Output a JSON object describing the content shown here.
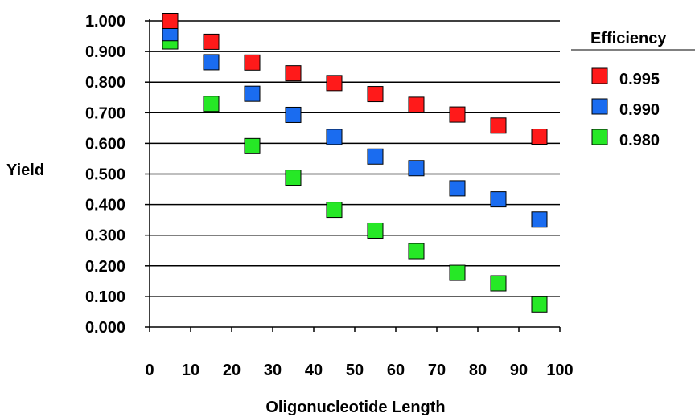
{
  "chart_data": {
    "type": "scatter",
    "title": "",
    "xlabel": "Oligonucleotide Length",
    "ylabel": "Yield",
    "xlim": [
      0,
      100
    ],
    "ylim": [
      0,
      1
    ],
    "x_ticks": [
      "0",
      "10",
      "20",
      "30",
      "40",
      "50",
      "60",
      "70",
      "80",
      "90",
      "100"
    ],
    "y_ticks": [
      "0.000",
      "0.100",
      "0.200",
      "0.300",
      "0.400",
      "0.500",
      "0.600",
      "0.700",
      "0.800",
      "0.900",
      "1.000"
    ],
    "grid": "horizontal",
    "legend": {
      "title": "Efficiency",
      "position": "right"
    },
    "x": [
      5,
      15,
      25,
      35,
      45,
      55,
      65,
      75,
      85,
      95
    ],
    "series": [
      {
        "name": "0.995",
        "color": "#ff1a1a",
        "values": [
          1.0,
          0.932,
          0.864,
          0.829,
          0.797,
          0.761,
          0.726,
          0.694,
          0.658,
          0.622
        ]
      },
      {
        "name": "0.990",
        "color": "#1a6cf0",
        "values": [
          0.96,
          0.865,
          0.762,
          0.693,
          0.621,
          0.557,
          0.519,
          0.453,
          0.417,
          0.351
        ]
      },
      {
        "name": "0.980",
        "color": "#26e826",
        "values": [
          0.933,
          0.729,
          0.591,
          0.488,
          0.383,
          0.315,
          0.248,
          0.177,
          0.143,
          0.074
        ]
      }
    ]
  }
}
